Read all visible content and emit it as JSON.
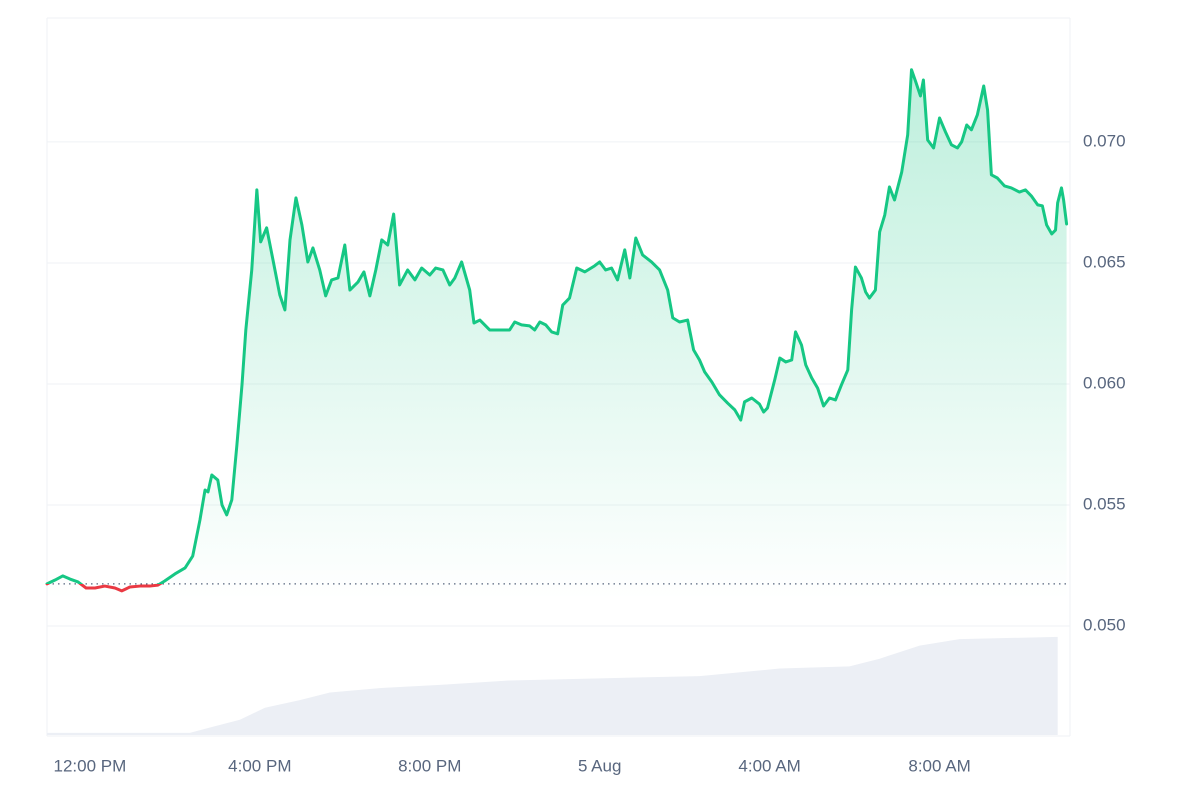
{
  "chart_data": {
    "type": "line",
    "x": [
      -1.01,
      -0.82,
      -0.64,
      -0.47,
      -0.28,
      -0.09,
      0.12,
      0.35,
      0.59,
      0.75,
      0.94,
      1.18,
      1.41,
      1.6,
      1.76,
      2.0,
      2.24,
      2.42,
      2.59,
      2.71,
      2.78,
      2.87,
      3.01,
      3.11,
      3.22,
      3.34,
      3.46,
      3.58,
      3.67,
      3.81,
      3.93,
      4.02,
      4.16,
      4.31,
      4.47,
      4.59,
      4.71,
      4.85,
      4.99,
      5.13,
      5.25,
      5.41,
      5.55,
      5.69,
      5.84,
      6.0,
      6.12,
      6.31,
      6.45,
      6.59,
      6.73,
      6.87,
      7.01,
      7.15,
      7.29,
      7.48,
      7.65,
      7.81,
      8.0,
      8.14,
      8.31,
      8.47,
      8.59,
      8.75,
      8.94,
      9.04,
      9.18,
      9.41,
      9.65,
      9.88,
      10.0,
      10.16,
      10.35,
      10.47,
      10.59,
      10.73,
      10.87,
      11.01,
      11.13,
      11.29,
      11.46,
      11.65,
      11.88,
      12.0,
      12.14,
      12.28,
      12.42,
      12.59,
      12.71,
      12.85,
      13.01,
      13.22,
      13.41,
      13.6,
      13.72,
      13.88,
      14.07,
      14.21,
      14.35,
      14.47,
      14.64,
      14.82,
      15.01,
      15.18,
      15.32,
      15.41,
      15.58,
      15.76,
      15.86,
      15.95,
      16.12,
      16.24,
      16.38,
      16.52,
      16.61,
      16.75,
      16.85,
      16.99,
      17.13,
      17.27,
      17.41,
      17.55,
      17.69,
      17.84,
      17.93,
      18.02,
      18.16,
      18.26,
      18.35,
      18.49,
      18.59,
      18.71,
      18.82,
      18.94,
      19.11,
      19.25,
      19.34,
      19.44,
      19.55,
      19.62,
      19.72,
      19.86,
      20.0,
      20.14,
      20.28,
      20.42,
      20.52,
      20.64,
      20.75,
      20.89,
      21.04,
      21.13,
      21.22,
      21.36,
      21.53,
      21.69,
      21.88,
      22.02,
      22.16,
      22.31,
      22.42,
      22.52,
      22.64,
      22.73,
      22.78,
      22.87,
      22.92,
      22.99
    ],
    "values": [
      0.05174,
      0.0519,
      0.05207,
      0.05194,
      0.05182,
      0.05157,
      0.05157,
      0.05165,
      0.05157,
      0.05145,
      0.05161,
      0.05165,
      0.05165,
      0.05169,
      0.05186,
      0.05215,
      0.0524,
      0.05289,
      0.05438,
      0.05562,
      0.05554,
      0.05624,
      0.05603,
      0.055,
      0.05459,
      0.05521,
      0.05748,
      0.05996,
      0.06223,
      0.06471,
      0.06802,
      0.06587,
      0.06645,
      0.06512,
      0.06368,
      0.06306,
      0.06595,
      0.06769,
      0.06657,
      0.06504,
      0.06562,
      0.06471,
      0.06364,
      0.0643,
      0.06438,
      0.06574,
      0.06388,
      0.06421,
      0.06463,
      0.06364,
      0.06471,
      0.06595,
      0.06574,
      0.06702,
      0.06409,
      0.06471,
      0.0643,
      0.06479,
      0.0645,
      0.06479,
      0.06471,
      0.06409,
      0.06438,
      0.06504,
      0.06388,
      0.06252,
      0.06264,
      0.06223,
      0.06223,
      0.06223,
      0.06256,
      0.06244,
      0.0624,
      0.06223,
      0.06256,
      0.06244,
      0.06215,
      0.06207,
      0.06326,
      0.06355,
      0.06479,
      0.06463,
      0.06488,
      0.06504,
      0.06471,
      0.06479,
      0.0643,
      0.06554,
      0.06438,
      0.06603,
      0.06533,
      0.06504,
      0.06471,
      0.06388,
      0.06273,
      0.06256,
      0.06264,
      0.06141,
      0.06099,
      0.0605,
      0.06008,
      0.05955,
      0.05921,
      0.05893,
      0.05851,
      0.05926,
      0.05942,
      0.05917,
      0.05884,
      0.05901,
      0.06017,
      0.06107,
      0.06091,
      0.06099,
      0.06215,
      0.06161,
      0.06079,
      0.06025,
      0.05983,
      0.05909,
      0.05942,
      0.05934,
      0.05996,
      0.06058,
      0.06306,
      0.06483,
      0.06438,
      0.0638,
      0.06355,
      0.06388,
      0.06628,
      0.06698,
      0.06814,
      0.0676,
      0.06876,
      0.07029,
      0.07298,
      0.07248,
      0.0719,
      0.07256,
      0.07008,
      0.06975,
      0.07099,
      0.07041,
      0.06988,
      0.06975,
      0.07,
      0.0707,
      0.0705,
      0.07112,
      0.07231,
      0.07132,
      0.06864,
      0.06851,
      0.06818,
      0.0681,
      0.06793,
      0.06802,
      0.06777,
      0.0674,
      0.06736,
      0.06657,
      0.0662,
      0.06636,
      0.06748,
      0.0681,
      0.0676,
      0.06661
    ],
    "color": "#16c784",
    "down_color": "#ea3943",
    "xlim": [
      -1.01,
      23.0
    ],
    "xticks": [
      {
        "value": 0,
        "label": "12:00 PM"
      },
      {
        "value": 4,
        "label": "4:00 PM"
      },
      {
        "value": 8,
        "label": "8:00 PM"
      },
      {
        "value": 12,
        "label": "5 Aug"
      },
      {
        "value": 16,
        "label": "4:00 AM"
      },
      {
        "value": 20,
        "label": "8:00 AM"
      }
    ],
    "ylim": [
      0.05,
      0.07512
    ],
    "yticks": [
      {
        "value": 0.05,
        "label": "0.050"
      },
      0.055,
      {
        "value": 0.06,
        "label": "0.060"
      },
      0.065,
      {
        "value": 0.07,
        "label": "0.070"
      }
    ],
    "grid": true,
    "volume": {
      "x": [
        -1.01,
        2.35,
        2.94,
        3.53,
        4.12,
        4.94,
        5.65,
        6.82,
        8.24,
        9.88,
        12.0,
        14.35,
        16.24,
        17.88,
        18.59,
        19.53,
        20.47,
        22.78
      ],
      "values": [
        2,
        2,
        8,
        14,
        25,
        32,
        39,
        43,
        46,
        50,
        52,
        54,
        61,
        63,
        70,
        82,
        88,
        90
      ],
      "ylim": [
        0,
        100
      ],
      "color": "#eceff5"
    }
  }
}
